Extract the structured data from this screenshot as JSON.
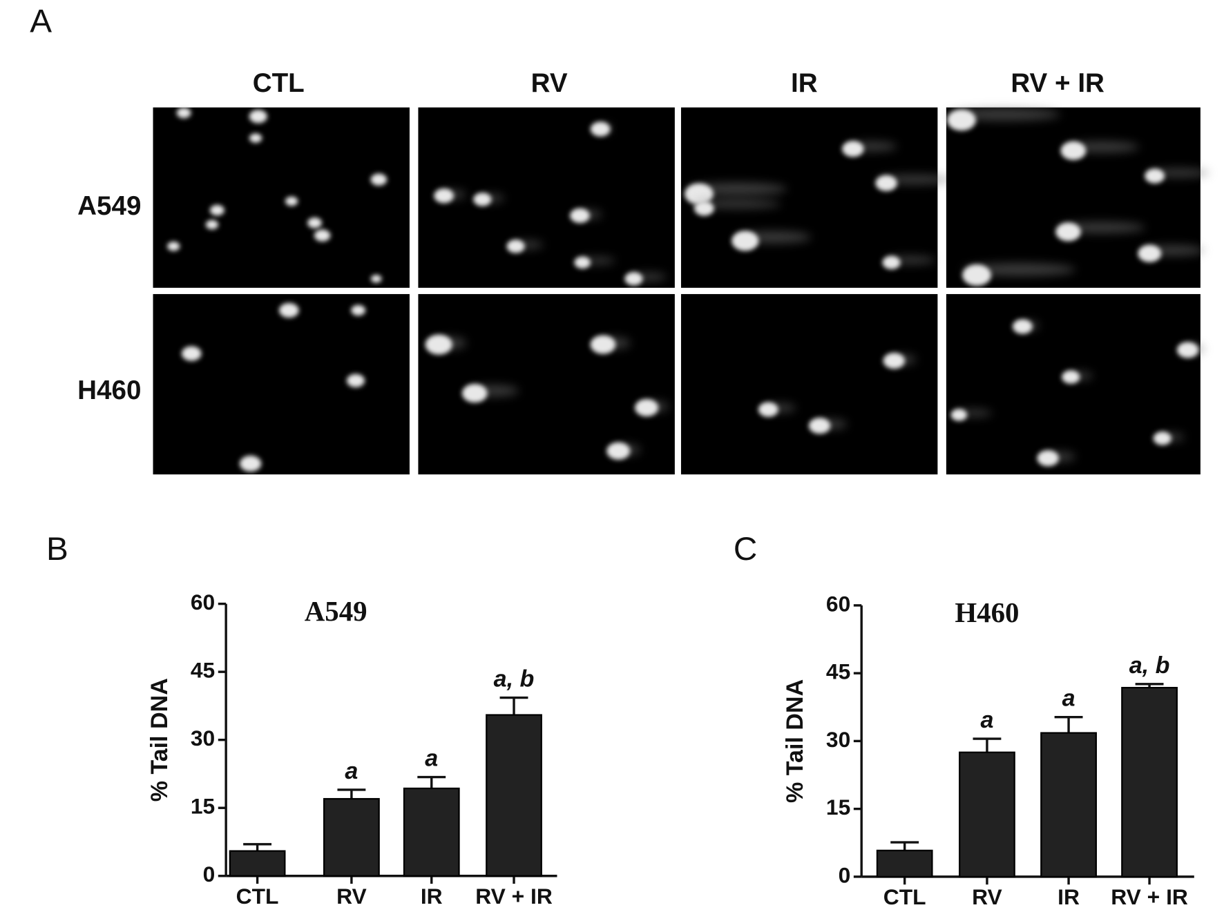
{
  "panel_a": {
    "label": "A",
    "columns": [
      "CTL",
      "RV",
      "IR",
      "RV + IR"
    ],
    "rows": [
      "A549",
      "H460"
    ]
  },
  "chart_data": [
    {
      "type": "bar",
      "panel_label": "B",
      "title": "A549",
      "ylabel": "% Tail DNA",
      "categories": [
        "CTL",
        "RV",
        "IR",
        "RV + IR"
      ],
      "values": [
        5.5,
        17,
        19.3,
        35.5
      ],
      "errors": [
        1.5,
        2,
        2.5,
        3.8
      ],
      "annotations": [
        null,
        "a",
        "a",
        "a, b"
      ],
      "color": "#222222",
      "ylim": [
        0,
        60
      ],
      "yticks": [
        0,
        15,
        30,
        45,
        60
      ]
    },
    {
      "type": "bar",
      "panel_label": "C",
      "title": "H460",
      "ylabel": "% Tail DNA",
      "categories": [
        "CTL",
        "RV",
        "IR",
        "RV + IR"
      ],
      "values": [
        5.8,
        27.5,
        31.8,
        41.8
      ],
      "errors": [
        1.8,
        3,
        3.5,
        0.8
      ],
      "annotations": [
        null,
        "a",
        "a",
        "a, b"
      ],
      "color": "#222222",
      "ylim": [
        0,
        60
      ],
      "yticks": [
        0,
        15,
        30,
        45,
        60
      ]
    }
  ]
}
